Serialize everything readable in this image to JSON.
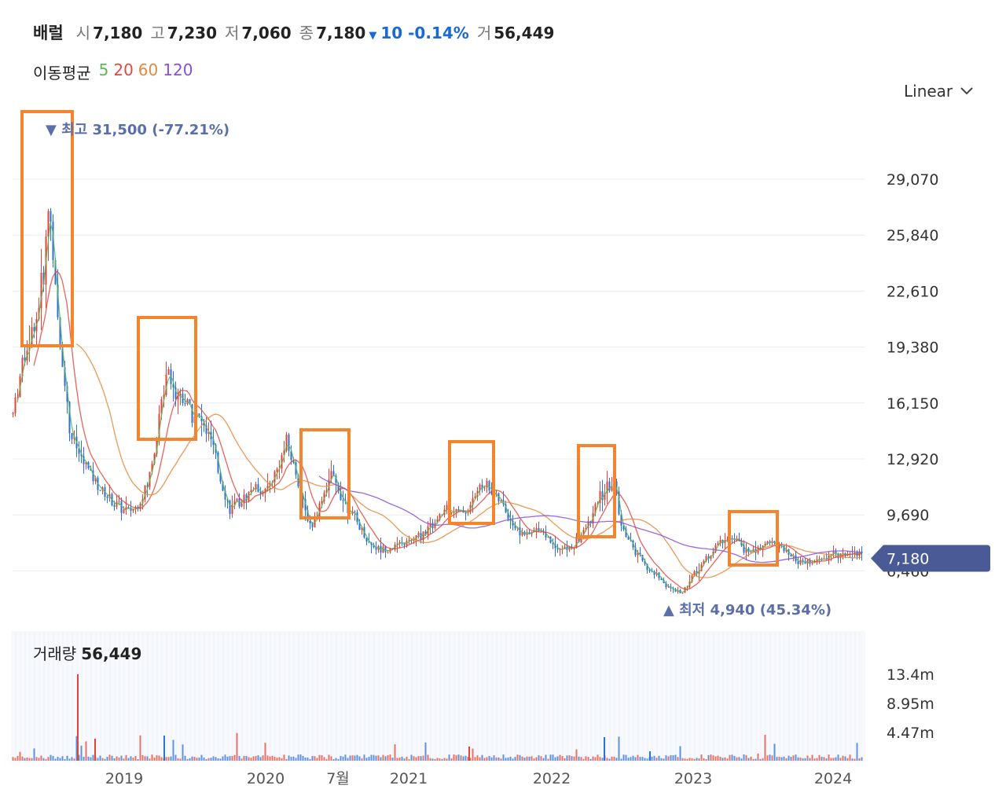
{
  "header": {
    "name": "배럴",
    "open_label": "시",
    "open": "7,180",
    "high_label": "고",
    "high": "7,230",
    "low_label": "저",
    "low": "7,060",
    "close_label": "종",
    "close": "7,180",
    "change": "10 -0.14%",
    "volume_label": "거",
    "volume": "56,449"
  },
  "ma_legend": {
    "label": "이동평균",
    "periods": [
      {
        "label": "5",
        "color": "#5cb85c"
      },
      {
        "label": "20",
        "color": "#e04a3f"
      },
      {
        "label": "60",
        "color": "#e8883a"
      },
      {
        "label": "120",
        "color": "#8a4fd8"
      }
    ]
  },
  "scale_select": {
    "label": "Linear",
    "icon": "chevron-down-icon"
  },
  "chart_data": {
    "type": "candlestick",
    "y_ticks": [
      "29,070",
      "25,840",
      "22,610",
      "19,380",
      "16,150",
      "12,920",
      "9,690",
      "6,460"
    ],
    "y_tick_values": [
      29070,
      25840,
      22610,
      19380,
      16150,
      12920,
      9690,
      6460
    ],
    "x_labels": [
      "2019",
      "2020",
      "7월",
      "2021",
      "2022",
      "2023",
      "2024"
    ],
    "current_price_label": "7,180",
    "high_annotation": {
      "label": "최고",
      "value": "31,500 (-77.21%)"
    },
    "low_annotation": {
      "label": "최저",
      "value": "4,940 (45.34%)"
    },
    "highlight_boxes_count": 6,
    "volume": {
      "title": "거래량",
      "value": "56,449",
      "y_ticks": [
        "13.4m",
        "8.95m",
        "4.47m"
      ]
    },
    "colors": {
      "up": "#e0453a",
      "down": "#2e6fd8",
      "ma5": "#5cb85c",
      "ma20": "#e04a3f",
      "ma60": "#e8883a",
      "ma120": "#8a4fd8",
      "highlight": "#f4852d",
      "price_tag": "#4a5a96"
    }
  }
}
